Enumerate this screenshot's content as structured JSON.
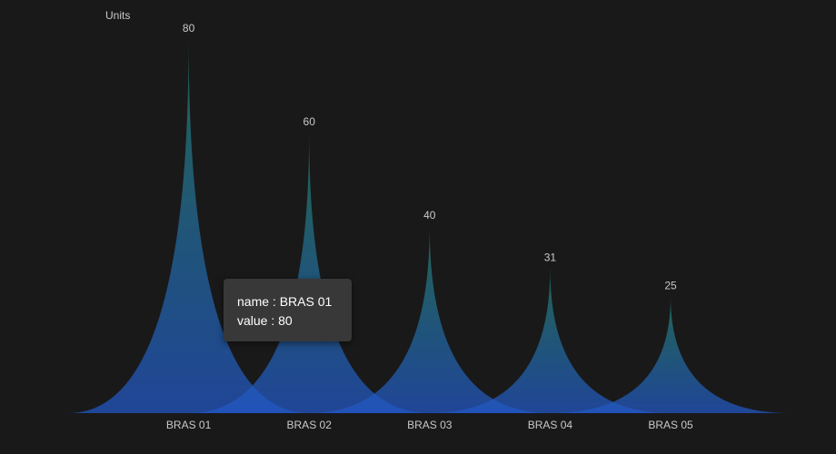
{
  "chart_data": {
    "type": "bar",
    "bar_style": "pictorial-pointed",
    "categories": [
      "BRAS 01",
      "BRAS 02",
      "BRAS 03",
      "BRAS 04",
      "BRAS 05"
    ],
    "values": [
      80,
      60,
      40,
      31,
      25
    ],
    "y_unit_label": "Units",
    "ylim": [
      0,
      80
    ],
    "grid": false,
    "legend": false,
    "colors": {
      "top": "#24795f",
      "bottom": "#2257c7",
      "background": "#19191a",
      "text": "#c9c9c9"
    }
  },
  "tooltip": {
    "name_key": "name",
    "value_key": "value",
    "separator": " : ",
    "category": "BRAS 01",
    "value": "80"
  }
}
